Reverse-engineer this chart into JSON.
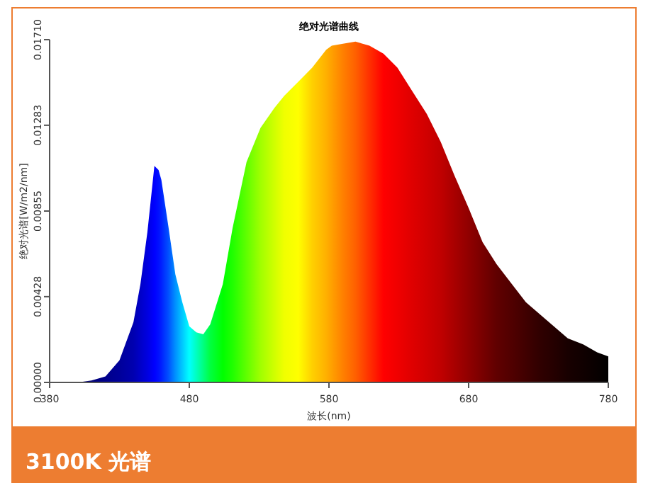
{
  "chart_data": {
    "type": "area",
    "title": "绝对光谱曲线",
    "xlabel": "波长(nm)",
    "ylabel": "绝对光谱[W/m2/nm]",
    "annotations": [
      "3100K 光谱"
    ],
    "x": [
      380,
      400,
      410,
      420,
      430,
      440,
      445,
      450,
      455,
      458,
      460,
      465,
      470,
      475,
      480,
      485,
      490,
      495,
      504,
      511,
      521,
      531,
      541,
      548,
      558,
      568,
      578,
      582,
      590,
      599,
      609,
      619,
      629,
      639,
      650,
      660,
      670,
      680,
      690,
      700,
      711,
      721,
      731,
      741,
      751,
      762,
      772,
      780
    ],
    "series": [
      {
        "values": [
          0,
          0,
          0.0001,
          0.0003,
          0.0011,
          0.003,
          0.0049,
          0.0075,
          0.0108,
          0.0106,
          0.0101,
          0.0078,
          0.0054,
          0.004,
          0.0028,
          0.0025,
          0.0024,
          0.0029,
          0.0049,
          0.0077,
          0.011,
          0.0127,
          0.0137,
          0.0143,
          0.015,
          0.0157,
          0.0166,
          0.0168,
          0.0169,
          0.017,
          0.0168,
          0.0164,
          0.0157,
          0.0146,
          0.0134,
          0.012,
          0.0103,
          0.0087,
          0.007,
          0.0059,
          0.0049,
          0.004,
          0.0034,
          0.0028,
          0.0022,
          0.0019,
          0.0015,
          0.0013
        ],
        "colors": [
          "#000033",
          "#000066",
          "#000078",
          "#00008b",
          "#00009a",
          "#0000b0",
          "#0000c8",
          "#0000e0",
          "#0000ff",
          "#0010ff",
          "#0020ff",
          "#0050ff",
          "#0090ff",
          "#00c8ff",
          "#00ffff",
          "#00ffc0",
          "#00ff80",
          "#00ff40",
          "#00ff00",
          "#20ff00",
          "#60ff00",
          "#a0ff00",
          "#d0ff00",
          "#f0ff00",
          "#ffff00",
          "#ffd000",
          "#ffb000",
          "#ffa000",
          "#ff8000",
          "#ff6000",
          "#ff3000",
          "#ff0000",
          "#f00000",
          "#e00000",
          "#d00000",
          "#c00000",
          "#a80000",
          "#900000",
          "#780000",
          "#600000",
          "#500000",
          "#400000",
          "#300000",
          "#250000",
          "#180000",
          "#100000",
          "#080000",
          "#000000"
        ]
      }
    ],
    "xlim": [
      380,
      780
    ],
    "xticks": [
      380,
      480,
      580,
      680,
      780
    ],
    "ylim": [
      0,
      0.0171
    ],
    "yticks": [
      {
        "value": 0,
        "label": "0.00000"
      },
      {
        "value": 0.00428,
        "label": "0.00428"
      },
      {
        "value": 0.00855,
        "label": "0.00855"
      },
      {
        "value": 0.01283,
        "label": "0.01283"
      },
      {
        "value": 0.0171,
        "label": "0.01710"
      }
    ]
  }
}
